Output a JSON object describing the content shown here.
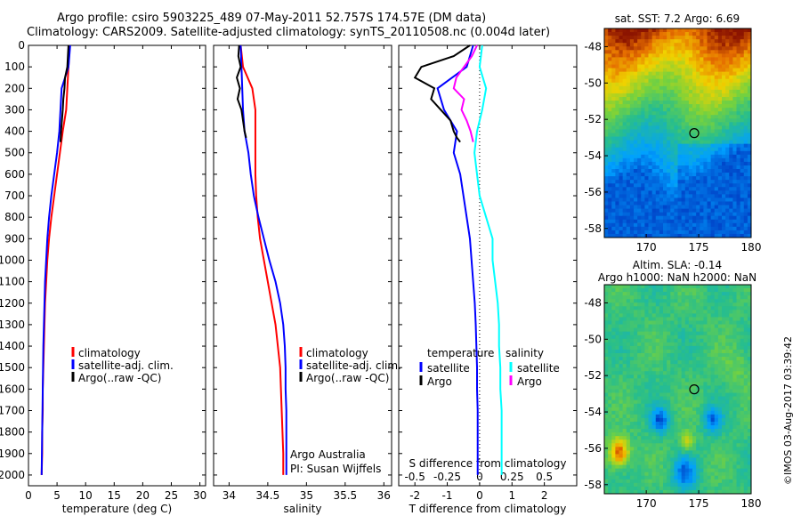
{
  "header": {
    "line1": "Argo profile: csiro 5903225_489 07-May-2011 52.757S 174.57E (DM data)",
    "line2": "Climatology: CARS2009. Satellite-adjusted climatology: synTS_20110508.nc (0.004d later)"
  },
  "colors": {
    "climatology": "#ff0000",
    "satellite": "#0000ff",
    "argo": "#000000",
    "salinity_satellite": "#00ffff",
    "salinity_argo": "#ff00ff"
  },
  "depth_ticks": [
    "0",
    "100",
    "200",
    "300",
    "400",
    "500",
    "600",
    "700",
    "800",
    "900",
    "1000",
    "1100",
    "1200",
    "1300",
    "1400",
    "1500",
    "1600",
    "1700",
    "1800",
    "1900",
    "2000"
  ],
  "footer": {
    "credit": "©IMOS 03-Aug-2017 03:39:42",
    "argo_australia": "Argo Australia",
    "pi": "PI: Susan Wijffels"
  },
  "chart_data": [
    {
      "type": "line",
      "id": "temperature",
      "xlabel": "temperature (deg C)",
      "xlim": [
        0,
        31
      ],
      "ylim": [
        0,
        2050
      ],
      "xticks": [
        "0",
        "5",
        "10",
        "15",
        "20",
        "25",
        "30"
      ],
      "legend": [
        "climatology",
        "satellite-adj. clim.",
        "Argo(..raw -QC)"
      ],
      "series": [
        {
          "name": "climatology",
          "color": "#ff0000",
          "x": [
            7.2,
            7.0,
            6.8,
            6.6,
            6.0,
            5.5,
            5.0,
            4.5,
            4.0,
            3.6,
            3.3,
            3.1,
            2.9,
            2.8,
            2.7,
            2.6,
            2.5,
            2.5,
            2.4,
            2.4,
            2.3
          ],
          "y": [
            0,
            100,
            200,
            300,
            400,
            500,
            600,
            700,
            800,
            900,
            1000,
            1100,
            1200,
            1300,
            1400,
            1500,
            1600,
            1700,
            1800,
            1900,
            2000
          ]
        },
        {
          "name": "satellite-adj. clim.",
          "color": "#0000ff",
          "x": [
            7.3,
            7.0,
            5.8,
            5.6,
            5.4,
            5.0,
            4.5,
            4.0,
            3.6,
            3.3,
            3.1,
            2.9,
            2.8,
            2.7,
            2.6,
            2.55,
            2.5,
            2.45,
            2.4,
            2.35,
            2.3
          ],
          "y": [
            0,
            100,
            200,
            300,
            400,
            500,
            600,
            700,
            800,
            900,
            1000,
            1100,
            1200,
            1300,
            1400,
            1500,
            1600,
            1700,
            1800,
            1900,
            2000
          ]
        },
        {
          "name": "Argo(..raw -QC)",
          "color": "#000000",
          "x": [
            7.0,
            6.9,
            6.8,
            6.4,
            6.3,
            6.1,
            6.0,
            5.7,
            5.6
          ],
          "y": [
            0,
            50,
            100,
            150,
            200,
            250,
            300,
            400,
            450
          ]
        }
      ]
    },
    {
      "type": "line",
      "id": "salinity",
      "xlabel": "salinity",
      "xlim": [
        33.8,
        36.1
      ],
      "ylim": [
        0,
        2050
      ],
      "xticks": [
        "34",
        "34.5",
        "35",
        "35.5",
        "36"
      ],
      "legend": [
        "climatology",
        "satellite-adj. clim.",
        "Argo(..raw -QC)"
      ],
      "series": [
        {
          "name": "climatology",
          "color": "#ff0000",
          "x": [
            34.15,
            34.18,
            34.3,
            34.34,
            34.34,
            34.34,
            34.34,
            34.35,
            34.37,
            34.4,
            34.45,
            34.5,
            34.55,
            34.6,
            34.63,
            34.66,
            34.67,
            34.68,
            34.69,
            34.7,
            34.7
          ],
          "y": [
            0,
            100,
            200,
            300,
            400,
            500,
            600,
            700,
            800,
            900,
            1000,
            1100,
            1200,
            1300,
            1400,
            1500,
            1600,
            1700,
            1800,
            1900,
            2000
          ]
        },
        {
          "name": "satellite-adj. clim.",
          "color": "#0000ff",
          "x": [
            34.15,
            34.16,
            34.17,
            34.18,
            34.2,
            34.25,
            34.28,
            34.32,
            34.38,
            34.45,
            34.52,
            34.6,
            34.66,
            34.7,
            34.72,
            34.73,
            34.73,
            34.74,
            34.74,
            34.74,
            34.74
          ],
          "y": [
            0,
            100,
            200,
            300,
            400,
            500,
            600,
            700,
            800,
            900,
            1000,
            1100,
            1200,
            1300,
            1400,
            1500,
            1600,
            1700,
            1800,
            1900,
            2000
          ]
        },
        {
          "name": "Argo(..raw -QC)",
          "color": "#000000",
          "x": [
            34.13,
            34.12,
            34.15,
            34.1,
            34.14,
            34.11,
            34.16,
            34.18,
            34.2,
            34.22
          ],
          "y": [
            0,
            50,
            100,
            150,
            200,
            250,
            300,
            350,
            400,
            430
          ]
        }
      ]
    },
    {
      "type": "line",
      "id": "differences",
      "xlabel": "T difference from climatology",
      "xlabel_top": "S difference from climatology",
      "xlim": [
        -2.5,
        3
      ],
      "ylim": [
        0,
        2050
      ],
      "xticks": [
        "-2",
        "-1",
        "0",
        "1",
        "2"
      ],
      "xticks_s": [
        "-0.5",
        "-0.25",
        "0",
        "0.25",
        "0.5"
      ],
      "legend_headers": [
        "temperature",
        "salinity"
      ],
      "legend": [
        "satellite",
        "Argo",
        "satellite",
        "Argo"
      ],
      "series": [
        {
          "name": "satellite",
          "color": "#0000ff",
          "x": [
            -0.2,
            -0.4,
            -1.3,
            -1.1,
            -0.7,
            -0.8,
            -0.6,
            -0.5,
            -0.4,
            -0.3,
            -0.25,
            -0.2,
            -0.15,
            -0.12,
            -0.1,
            -0.08,
            -0.08,
            -0.06,
            -0.06,
            -0.06,
            -0.06
          ],
          "y": [
            0,
            100,
            200,
            300,
            400,
            500,
            600,
            700,
            800,
            900,
            1000,
            1100,
            1200,
            1300,
            1400,
            1500,
            1600,
            1700,
            1800,
            1900,
            2000
          ]
        },
        {
          "name": "Argo",
          "color": "#000000",
          "x": [
            -0.3,
            -0.8,
            -1.8,
            -2.0,
            -1.4,
            -1.5,
            -1.2,
            -0.9,
            -0.8,
            -0.7,
            -0.6
          ],
          "y": [
            0,
            50,
            100,
            150,
            200,
            250,
            300,
            350,
            400,
            430,
            450
          ]
        },
        {
          "name": "satellite",
          "color": "#00ffff",
          "x": [
            0.02,
            0.0,
            0.05,
            0.02,
            -0.02,
            -0.04,
            -0.02,
            0.0,
            0.05,
            0.1,
            0.1,
            0.12,
            0.14,
            0.15,
            0.15,
            0.16,
            0.16,
            0.17,
            0.17,
            0.17,
            0.17
          ],
          "y": [
            0,
            100,
            200,
            300,
            400,
            500,
            600,
            700,
            800,
            900,
            1000,
            1100,
            1200,
            1300,
            1400,
            1500,
            1600,
            1700,
            1800,
            1900,
            2000
          ]
        },
        {
          "name": "Argo",
          "color": "#ff00ff",
          "x": [
            -0.02,
            -0.06,
            -0.12,
            -0.18,
            -0.2,
            -0.12,
            -0.14,
            -0.1,
            -0.07,
            -0.05
          ],
          "y": [
            0,
            50,
            100,
            150,
            200,
            250,
            300,
            350,
            400,
            450
          ]
        }
      ]
    },
    {
      "type": "heatmap",
      "id": "sst_map",
      "title": "sat. SST: 7.2 Argo: 6.69",
      "xlim": [
        166,
        180
      ],
      "ylim": [
        -58.5,
        -47
      ],
      "xticks": [
        "170",
        "175",
        "180"
      ],
      "yticks": [
        "-48",
        "-50",
        "-52",
        "-54",
        "-56",
        "-58"
      ],
      "marker": {
        "lon": 174.57,
        "lat": -52.757
      }
    },
    {
      "type": "heatmap",
      "id": "sla_map",
      "title": "Altim. SLA: -0.14",
      "subtitle": "Argo h1000: NaN h2000: NaN",
      "xlim": [
        166,
        180
      ],
      "ylim": [
        -58.5,
        -47
      ],
      "xticks": [
        "170",
        "175",
        "180"
      ],
      "yticks": [
        "-48",
        "-50",
        "-52",
        "-54",
        "-56",
        "-58"
      ],
      "marker": {
        "lon": 174.57,
        "lat": -52.757
      }
    }
  ]
}
